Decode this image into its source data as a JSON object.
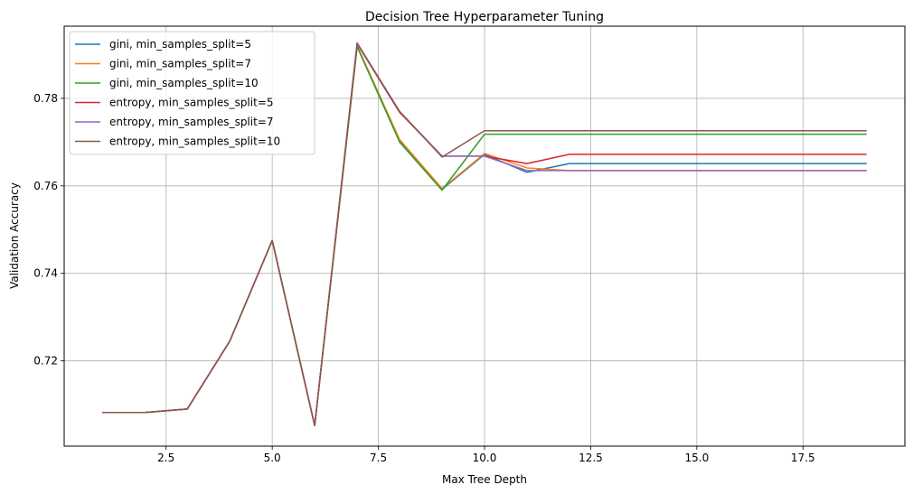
{
  "chart_data": {
    "type": "line",
    "title": "Decision Tree Hyperparameter Tuning",
    "xlabel": "Max Tree Depth",
    "ylabel": "Validation Accuracy",
    "xlim": [
      0.1,
      19.9
    ],
    "ylim": [
      0.7005,
      0.7965
    ],
    "xticks": [
      2.5,
      5.0,
      7.5,
      10.0,
      12.5,
      15.0,
      17.5
    ],
    "xtick_labels": [
      "2.5",
      "5.0",
      "7.5",
      "10.0",
      "12.5",
      "15.0",
      "17.5"
    ],
    "yticks": [
      0.72,
      0.74,
      0.76,
      0.78
    ],
    "ytick_labels": [
      "0.72",
      "0.74",
      "0.76",
      "0.78"
    ],
    "grid": true,
    "legend_position": "top-left",
    "x": [
      1,
      2,
      3,
      4,
      5,
      6,
      7,
      8,
      9,
      10,
      11,
      12,
      13,
      14,
      15,
      16,
      17,
      18,
      19
    ],
    "series": [
      {
        "name": "gini, min_samples_split=5",
        "color": "#1f77b4",
        "values": [
          0.7082,
          0.7082,
          0.709,
          0.7245,
          0.7475,
          0.7052,
          0.792,
          0.7703,
          0.7592,
          0.7672,
          0.7631,
          0.7651,
          0.7651,
          0.7651,
          0.7651,
          0.7651,
          0.7651,
          0.7651,
          0.7651
        ]
      },
      {
        "name": "gini, min_samples_split=7",
        "color": "#ff7f0e",
        "values": [
          0.7082,
          0.7082,
          0.709,
          0.7245,
          0.7475,
          0.7052,
          0.792,
          0.7706,
          0.7594,
          0.7674,
          0.7641,
          0.7635,
          0.7635,
          0.7635,
          0.7635,
          0.7635,
          0.7635,
          0.7635,
          0.7635
        ]
      },
      {
        "name": "gini, min_samples_split=10",
        "color": "#2ca02c",
        "values": [
          0.7082,
          0.7082,
          0.709,
          0.7245,
          0.7475,
          0.7052,
          0.7918,
          0.77,
          0.759,
          0.7718,
          0.7718,
          0.7718,
          0.7718,
          0.7718,
          0.7718,
          0.7718,
          0.7718,
          0.7718,
          0.7718
        ]
      },
      {
        "name": "entropy, min_samples_split=5",
        "color": "#d62728",
        "values": [
          0.7082,
          0.7082,
          0.709,
          0.7245,
          0.7475,
          0.7052,
          0.7925,
          0.7768,
          0.7668,
          0.7668,
          0.7651,
          0.7672,
          0.7672,
          0.7672,
          0.7672,
          0.7672,
          0.7672,
          0.7672,
          0.7672
        ]
      },
      {
        "name": "entropy, min_samples_split=7",
        "color": "#9467bd",
        "values": [
          0.7082,
          0.7082,
          0.709,
          0.7245,
          0.7475,
          0.7052,
          0.7927,
          0.777,
          0.7668,
          0.7668,
          0.7635,
          0.7635,
          0.7635,
          0.7635,
          0.7635,
          0.7635,
          0.7635,
          0.7635,
          0.7635
        ]
      },
      {
        "name": "entropy, min_samples_split=10",
        "color": "#8c564b",
        "values": [
          0.7082,
          0.7082,
          0.709,
          0.7245,
          0.7475,
          0.7052,
          0.7925,
          0.777,
          0.7666,
          0.7726,
          0.7726,
          0.7726,
          0.7726,
          0.7726,
          0.7726,
          0.7726,
          0.7726,
          0.7726,
          0.7726
        ]
      }
    ]
  }
}
